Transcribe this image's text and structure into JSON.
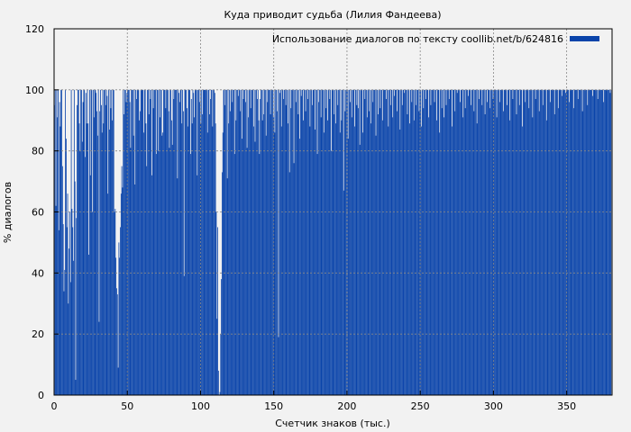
{
  "chart_data": {
    "type": "bar",
    "title": "Куда приводит судьба (Лилия Фандеева)",
    "xlabel": "Счетчик знаков (тыс.)",
    "ylabel": "% диалогов",
    "xlim": [
      0,
      381
    ],
    "ylim": [
      0,
      120
    ],
    "x_ticks": [
      "0",
      "50",
      "100",
      "150",
      "200",
      "250",
      "300",
      "350"
    ],
    "y_ticks": [
      "0",
      "20",
      "40",
      "60",
      "80",
      "100",
      "120"
    ],
    "grid": true,
    "legend_position": "top-right",
    "series": [
      {
        "name": "Использование диалогов по тексту coollib.net/b/624816",
        "color": "#0a44aa",
        "x_step": 0.5,
        "values_note": "approximate profile sampled from the plot (per 0.5k chars)",
        "values": [
          95,
          100,
          62,
          100,
          91,
          100,
          54,
          96,
          88,
          100,
          100,
          75,
          56,
          34,
          41,
          100,
          84,
          55,
          66,
          30,
          48,
          60,
          37,
          100,
          61,
          55,
          44,
          100,
          70,
          5,
          58,
          95,
          100,
          100,
          89,
          80,
          100,
          100,
          83,
          96,
          100,
          100,
          78,
          99,
          89,
          100,
          89,
          46,
          100,
          72,
          100,
          100,
          60,
          100,
          91,
          100,
          100,
          99,
          93,
          85,
          100,
          24,
          93,
          100,
          95,
          86,
          100,
          89,
          100,
          100,
          95,
          100,
          98,
          66,
          100,
          87,
          100,
          94,
          100,
          90,
          100,
          100,
          60,
          61,
          45,
          35,
          33,
          9,
          50,
          45,
          55,
          66,
          75,
          68,
          100,
          92,
          100,
          100,
          96,
          99,
          100,
          100,
          100,
          96,
          81,
          100,
          100,
          100,
          85,
          100,
          69,
          100,
          97,
          100,
          100,
          100,
          90,
          93,
          100,
          100,
          100,
          100,
          86,
          100,
          100,
          89,
          75,
          100,
          100,
          92,
          100,
          97,
          100,
          72,
          100,
          94,
          100,
          100,
          100,
          79,
          100,
          100,
          80,
          100,
          91,
          100,
          100,
          85,
          86,
          100,
          100,
          100,
          94,
          100,
          100,
          100,
          93,
          81,
          100,
          100,
          90,
          82,
          100,
          97,
          100,
          100,
          100,
          100,
          71,
          100,
          99,
          96,
          100,
          100,
          89,
          100,
          93,
          39,
          100,
          100,
          100,
          94,
          88,
          100,
          100,
          100,
          79,
          97,
          89,
          100,
          99,
          91,
          100,
          100,
          100,
          72,
          100,
          100,
          96,
          100,
          89,
          100,
          92,
          100,
          100,
          100,
          100,
          100,
          100,
          86,
          100,
          100,
          92,
          97,
          100,
          100,
          88,
          100,
          100,
          99,
          89,
          60,
          25,
          55,
          8,
          0,
          1,
          20,
          38,
          73,
          86,
          100,
          100,
          95,
          100,
          100,
          71,
          100,
          89,
          100,
          93,
          100,
          100,
          96,
          100,
          100,
          79,
          100,
          90,
          100,
          100,
          98,
          100,
          100,
          93,
          100,
          84,
          100,
          97,
          100,
          100,
          96,
          100,
          81,
          100,
          91,
          100,
          100,
          94,
          100,
          100,
          100,
          88,
          100,
          83,
          100,
          100,
          97,
          100,
          90,
          79,
          97,
          100,
          100,
          90,
          100,
          92,
          100,
          100,
          85,
          100,
          96,
          100,
          100,
          100,
          92,
          100,
          100,
          100,
          91,
          100,
          86,
          100,
          100,
          93,
          100,
          19,
          100,
          99,
          100,
          88,
          100,
          100,
          97,
          100,
          100,
          95,
          100,
          100,
          89,
          100,
          73,
          100,
          94,
          100,
          100,
          100,
          76,
          100,
          100,
          96,
          100,
          100,
          92,
          100,
          84,
          100,
          98,
          100,
          100,
          90,
          100,
          100,
          93,
          100,
          100,
          97,
          100,
          100,
          88,
          100,
          100,
          95,
          100,
          100,
          100,
          87,
          100,
          100,
          79,
          100,
          96,
          100,
          100,
          91,
          100,
          100,
          100,
          86,
          100,
          100,
          94,
          100,
          90,
          100,
          100,
          97,
          100,
          80,
          100,
          100,
          100,
          92,
          100,
          89,
          100,
          100,
          95,
          100,
          100,
          86,
          100,
          90,
          100,
          100,
          67,
          100,
          93,
          100,
          100,
          100,
          84,
          100,
          100,
          96,
          100,
          91,
          100,
          100,
          100,
          88,
          100,
          100,
          95,
          100,
          94,
          100,
          82,
          100,
          100,
          100,
          86,
          100,
          100,
          97,
          100,
          100,
          91,
          100,
          100,
          93,
          100,
          89,
          100,
          100,
          96,
          100,
          100,
          100,
          85,
          100,
          100,
          92,
          100,
          100,
          94,
          100,
          100,
          90,
          100,
          100,
          100,
          100,
          97,
          100,
          100,
          88,
          100,
          100,
          95,
          100,
          100,
          91,
          100,
          98,
          100,
          100,
          100,
          93,
          100,
          100,
          100,
          87,
          100,
          100,
          95,
          100,
          100,
          99,
          100,
          100,
          100,
          92,
          100,
          100,
          89,
          100,
          100,
          96,
          100,
          100,
          90,
          100,
          100,
          95,
          100,
          100,
          100,
          93,
          100,
          100,
          88,
          100,
          100,
          94,
          100,
          100,
          97,
          100,
          100,
          100,
          91,
          100,
          100,
          95,
          100,
          100,
          100,
          100,
          96,
          100,
          100,
          90,
          100,
          100,
          100,
          86,
          100,
          100,
          94,
          100,
          100,
          91,
          100,
          100,
          95,
          100,
          100,
          100,
          97,
          100,
          100,
          100,
          88,
          100,
          100,
          100,
          93,
          100,
          100,
          99,
          100,
          100,
          100,
          96,
          100,
          100,
          100,
          91,
          100,
          100,
          94,
          100,
          100,
          100,
          98,
          100,
          100,
          100,
          95,
          100,
          100,
          100,
          93,
          100,
          100,
          100,
          89,
          100,
          100,
          97,
          100,
          100,
          100,
          95,
          100,
          100,
          100,
          92,
          100,
          100,
          96,
          100,
          100,
          100,
          94,
          100,
          100,
          100,
          97,
          100,
          100,
          100,
          100,
          91,
          100,
          100,
          100,
          96,
          100,
          100,
          100,
          100,
          93,
          100,
          100,
          100,
          100,
          95,
          100,
          100,
          100,
          90,
          100,
          100,
          100,
          97,
          100,
          100,
          100,
          100,
          92,
          100,
          100,
          100,
          95,
          100,
          100,
          100,
          88,
          100,
          100,
          100,
          96,
          100,
          100,
          100,
          100,
          94,
          100,
          100,
          100,
          100,
          91,
          100,
          100,
          100,
          97,
          100,
          100,
          100,
          100,
          93,
          100,
          100,
          100,
          100,
          95,
          100,
          100,
          100,
          100,
          90,
          100,
          100,
          100,
          100,
          96,
          100,
          100,
          100,
          100,
          100,
          92,
          100,
          100,
          100,
          100,
          94,
          100,
          100,
          100,
          100,
          98,
          100,
          100,
          100,
          100,
          99,
          100,
          100,
          100,
          100,
          96,
          100,
          100,
          100,
          100,
          100,
          94,
          100,
          100,
          100,
          100,
          100,
          97,
          100,
          100,
          100,
          100,
          100,
          93,
          100,
          100,
          100,
          100,
          100,
          100,
          95,
          100,
          100,
          100,
          100,
          100,
          100,
          98,
          100,
          100,
          100,
          100,
          100,
          100,
          97,
          100,
          100,
          100,
          100,
          100,
          100,
          100,
          96,
          100,
          100,
          100,
          100,
          100,
          100,
          100,
          100,
          99,
          100
        ]
      }
    ]
  }
}
